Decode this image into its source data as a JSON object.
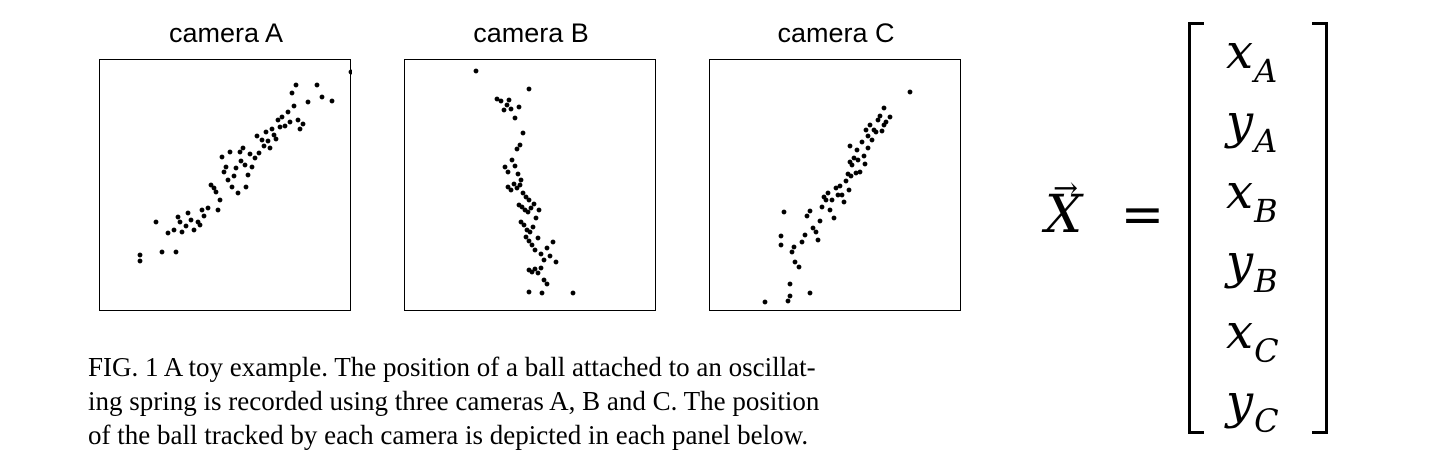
{
  "panels": [
    {
      "title": "camera A",
      "points": [
        [
          40,
          195
        ],
        [
          40,
          201
        ],
        [
          56,
          162
        ],
        [
          62,
          192
        ],
        [
          68,
          173
        ],
        [
          74,
          170
        ],
        [
          76,
          192
        ],
        [
          78,
          157
        ],
        [
          80,
          162
        ],
        [
          82,
          172
        ],
        [
          86,
          166
        ],
        [
          88,
          153
        ],
        [
          91,
          160
        ],
        [
          94,
          170
        ],
        [
          98,
          162
        ],
        [
          100,
          165
        ],
        [
          102,
          150
        ],
        [
          104,
          156
        ],
        [
          108,
          148
        ],
        [
          111,
          125
        ],
        [
          114,
          128
        ],
        [
          116,
          132
        ],
        [
          118,
          150
        ],
        [
          120,
          140
        ],
        [
          122,
          97
        ],
        [
          124,
          112
        ],
        [
          126,
          107
        ],
        [
          128,
          120
        ],
        [
          130,
          92
        ],
        [
          132,
          127
        ],
        [
          134,
          116
        ],
        [
          136,
          108
        ],
        [
          138,
          133
        ],
        [
          140,
          92
        ],
        [
          141,
          101
        ],
        [
          143,
          88
        ],
        [
          145,
          105
        ],
        [
          146,
          127
        ],
        [
          148,
          115
        ],
        [
          150,
          94
        ],
        [
          152,
          107
        ],
        [
          155,
          98
        ],
        [
          157,
          76
        ],
        [
          159,
          93
        ],
        [
          162,
          80
        ],
        [
          164,
          86
        ],
        [
          166,
          72
        ],
        [
          168,
          81
        ],
        [
          170,
          88
        ],
        [
          172,
          69
        ],
        [
          174,
          75
        ],
        [
          176,
          79
        ],
        [
          178,
          60
        ],
        [
          180,
          67
        ],
        [
          182,
          57
        ],
        [
          185,
          66
        ],
        [
          188,
          52
        ],
        [
          190,
          62
        ],
        [
          192,
          33
        ],
        [
          194,
          46
        ],
        [
          196,
          25
        ],
        [
          198,
          60
        ],
        [
          200,
          69
        ],
        [
          203,
          64
        ],
        [
          208,
          42
        ],
        [
          217,
          25
        ],
        [
          222,
          37
        ],
        [
          232,
          41
        ],
        [
          251,
          12
        ]
      ]
    },
    {
      "title": "camera B",
      "points": [
        [
          71,
          11
        ],
        [
          92,
          39
        ],
        [
          96,
          41
        ],
        [
          99,
          50
        ],
        [
          102,
          45
        ],
        [
          104,
          40
        ],
        [
          106,
          49
        ],
        [
          110,
          58
        ],
        [
          114,
          47
        ],
        [
          112,
          89
        ],
        [
          115,
          85
        ],
        [
          118,
          73
        ],
        [
          100,
          107
        ],
        [
          103,
          112
        ],
        [
          107,
          100
        ],
        [
          110,
          106
        ],
        [
          113,
          114
        ],
        [
          116,
          120
        ],
        [
          103,
          127
        ],
        [
          106,
          130
        ],
        [
          109,
          124
        ],
        [
          112,
          128
        ],
        [
          115,
          125
        ],
        [
          118,
          133
        ],
        [
          121,
          137
        ],
        [
          124,
          140
        ],
        [
          114,
          145
        ],
        [
          117,
          147
        ],
        [
          120,
          150
        ],
        [
          123,
          152
        ],
        [
          126,
          148
        ],
        [
          129,
          144
        ],
        [
          116,
          162
        ],
        [
          119,
          165
        ],
        [
          122,
          170
        ],
        [
          125,
          172
        ],
        [
          128,
          167
        ],
        [
          131,
          158
        ],
        [
          134,
          150
        ],
        [
          121,
          177
        ],
        [
          124,
          181
        ],
        [
          127,
          185
        ],
        [
          130,
          190
        ],
        [
          133,
          178
        ],
        [
          136,
          194
        ],
        [
          139,
          200
        ],
        [
          142,
          188
        ],
        [
          145,
          196
        ],
        [
          148,
          182
        ],
        [
          151,
          202
        ],
        [
          124,
          210
        ],
        [
          127,
          212
        ],
        [
          130,
          209
        ],
        [
          133,
          213
        ],
        [
          136,
          208
        ],
        [
          139,
          220
        ],
        [
          142,
          224
        ],
        [
          137,
          233
        ],
        [
          124,
          29
        ],
        [
          124,
          232
        ],
        [
          168,
          233
        ]
      ]
    },
    {
      "title": "camera C",
      "points": [
        [
          55,
          242
        ],
        [
          78,
          241
        ],
        [
          80,
          224
        ],
        [
          80,
          236
        ],
        [
          100,
          233
        ],
        [
          71,
          176
        ],
        [
          71,
          185
        ],
        [
          74,
          152
        ],
        [
          85,
          202
        ],
        [
          89,
          207
        ],
        [
          82,
          192
        ],
        [
          84,
          187
        ],
        [
          92,
          182
        ],
        [
          95,
          175
        ],
        [
          97,
          156
        ],
        [
          100,
          151
        ],
        [
          103,
          168
        ],
        [
          106,
          172
        ],
        [
          108,
          180
        ],
        [
          110,
          161
        ],
        [
          112,
          147
        ],
        [
          114,
          137
        ],
        [
          116,
          140
        ],
        [
          118,
          133
        ],
        [
          120,
          150
        ],
        [
          122,
          140
        ],
        [
          124,
          158
        ],
        [
          126,
          128
        ],
        [
          128,
          135
        ],
        [
          130,
          126
        ],
        [
          132,
          135
        ],
        [
          134,
          142
        ],
        [
          136,
          121
        ],
        [
          138,
          114
        ],
        [
          139,
          130
        ],
        [
          140,
          102
        ],
        [
          141,
          116
        ],
        [
          142,
          105
        ],
        [
          144,
          98
        ],
        [
          146,
          113
        ],
        [
          147,
          90
        ],
        [
          148,
          100
        ],
        [
          150,
          112
        ],
        [
          152,
          82
        ],
        [
          154,
          96
        ],
        [
          155,
          104
        ],
        [
          156,
          70
        ],
        [
          158,
          76
        ],
        [
          160,
          65
        ],
        [
          162,
          80
        ],
        [
          164,
          70
        ],
        [
          166,
          72
        ],
        [
          168,
          60
        ],
        [
          170,
          56
        ],
        [
          172,
          71
        ],
        [
          174,
          65
        ],
        [
          176,
          62
        ],
        [
          180,
          57
        ],
        [
          174,
          48
        ],
        [
          200,
          32
        ],
        [
          140,
          86
        ],
        [
          158,
          88
        ]
      ]
    }
  ],
  "caption": {
    "line1": "FIG. 1  A toy example. The position of a ball attached to an oscillat-",
    "line2": "ing spring is recorded using three cameras A, B and C. The position",
    "line3": "of the ball tracked by each camera is depicted in each panel below."
  },
  "equation": {
    "lhs_symbol": "X",
    "lhs_arrow": "→",
    "equals": "=",
    "entries": [
      {
        "var": "x",
        "sub": "A"
      },
      {
        "var": "y",
        "sub": "A"
      },
      {
        "var": "x",
        "sub": "B"
      },
      {
        "var": "y",
        "sub": "B"
      },
      {
        "var": "x",
        "sub": "C"
      },
      {
        "var": "y",
        "sub": "C"
      }
    ]
  }
}
